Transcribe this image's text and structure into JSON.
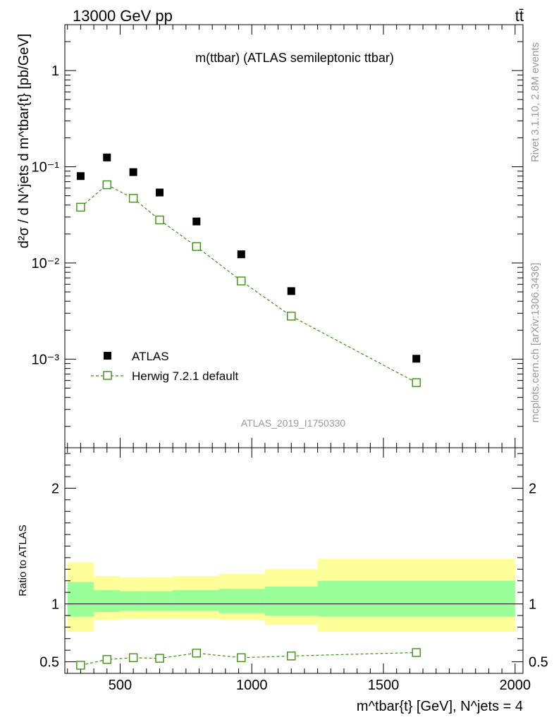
{
  "header": {
    "beam": "13000 GeV pp",
    "process": "tt̄"
  },
  "side_text": {
    "rivet": "Rivet 3.1.10,  2.8M events",
    "mcplots": "mcplots.cern.ch [arXiv:1306.3436]"
  },
  "chart_data": [
    {
      "type": "scatter",
      "title": "m(ttbar) (ATLAS semileptonic ttbar)",
      "analysis_tag": "ATLAS_2019_I1750330",
      "ylabel": "d²σ / d N^jets d m^tbar{t} [pb/GeV]",
      "yscale": "log",
      "ylim": [
        0.00012,
        3.0
      ],
      "xlim": [
        290,
        2030
      ],
      "y_ticks": [
        {
          "value": 1,
          "label": "1"
        },
        {
          "value": 0.1,
          "label": "10⁻¹"
        },
        {
          "value": 0.01,
          "label": "10⁻²"
        },
        {
          "value": 0.001,
          "label": "10⁻³"
        }
      ],
      "legend_position": "bottom-left",
      "series": [
        {
          "name": "ATLAS",
          "marker": "filled-square",
          "color": "#000000",
          "x": [
            350,
            450,
            550,
            650,
            790,
            960,
            1150,
            1625
          ],
          "y": [
            0.08,
            0.125,
            0.088,
            0.054,
            0.027,
            0.0123,
            0.0051,
            0.00101
          ]
        },
        {
          "name": "Herwig 7.2.1 default",
          "marker": "open-square",
          "color": "#3b9110",
          "x": [
            350,
            450,
            550,
            650,
            790,
            960,
            1150,
            1625
          ],
          "y": [
            0.038,
            0.065,
            0.047,
            0.028,
            0.0148,
            0.0065,
            0.0028,
            0.00057
          ]
        }
      ]
    },
    {
      "type": "scatter",
      "ylabel": "Ratio to ATLAS",
      "xlabel": "m^tbar{t} [GeV], N^jets = 4",
      "ylim": [
        0.4,
        2.35
      ],
      "xlim": [
        290,
        2030
      ],
      "x_ticks": [
        500,
        1000,
        1500,
        2000
      ],
      "y_ticks": [
        {
          "value": 0.5,
          "label": "0.5"
        },
        {
          "value": 1,
          "label": "1"
        },
        {
          "value": 2,
          "label": "2"
        }
      ],
      "bins": [
        {
          "lo": 300,
          "hi": 400,
          "green": [
            0.89,
            1.19
          ],
          "yellow": [
            0.76,
            1.36
          ]
        },
        {
          "lo": 400,
          "hi": 500,
          "green": [
            0.93,
            1.12
          ],
          "yellow": [
            0.86,
            1.24
          ]
        },
        {
          "lo": 500,
          "hi": 600,
          "green": [
            0.94,
            1.11
          ],
          "yellow": [
            0.87,
            1.23
          ]
        },
        {
          "lo": 600,
          "hi": 700,
          "green": [
            0.94,
            1.11
          ],
          "yellow": [
            0.87,
            1.23
          ]
        },
        {
          "lo": 700,
          "hi": 875,
          "green": [
            0.94,
            1.12
          ],
          "yellow": [
            0.87,
            1.24
          ]
        },
        {
          "lo": 875,
          "hi": 1050,
          "green": [
            0.92,
            1.13
          ],
          "yellow": [
            0.86,
            1.26
          ]
        },
        {
          "lo": 1050,
          "hi": 1250,
          "green": [
            0.9,
            1.15
          ],
          "yellow": [
            0.82,
            1.3
          ]
        },
        {
          "lo": 1250,
          "hi": 2000,
          "green": [
            0.89,
            1.2
          ],
          "yellow": [
            0.76,
            1.39
          ]
        }
      ],
      "series": [
        {
          "name": "Herwig 7.2.1 default / ATLAS",
          "marker": "open-square",
          "color": "#3b9110",
          "x": [
            350,
            450,
            550,
            650,
            790,
            960,
            1150,
            1625
          ],
          "y": [
            0.47,
            0.52,
            0.535,
            0.53,
            0.575,
            0.535,
            0.55,
            0.58
          ]
        }
      ]
    }
  ]
}
